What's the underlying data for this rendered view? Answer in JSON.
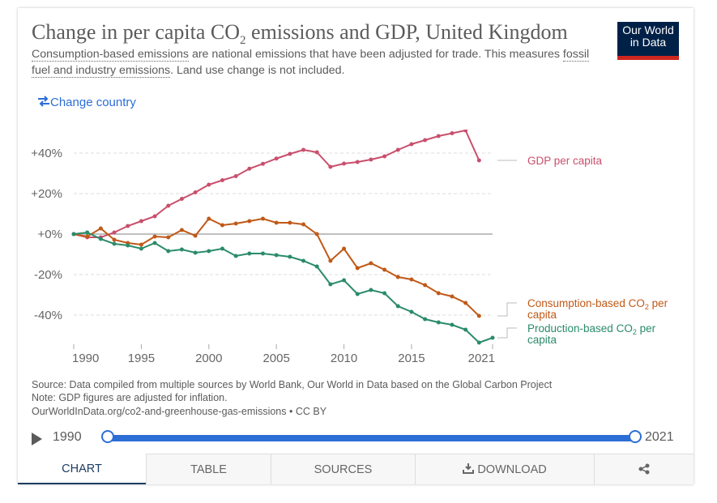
{
  "header": {
    "title_pre": "Change in per capita CO",
    "title_sub": "2",
    "title_post": " emissions and GDP, United Kingdom",
    "subtitle_link1": "Consumption-based emissions",
    "subtitle_mid": " are national emissions that have been adjusted for trade. This measures ",
    "subtitle_link2": "fossil fuel and industry emissions",
    "subtitle_end": ". Land use change is not included.",
    "logo_line1": "Our World",
    "logo_line2": "in Data"
  },
  "controls": {
    "change_country": "Change country",
    "change_icon": "swap-arrows-icon"
  },
  "chart_data": {
    "type": "line",
    "title": "Change in per capita CO2 emissions and GDP, United Kingdom",
    "xlabel": "",
    "ylabel": "",
    "xlim": [
      1990,
      2021
    ],
    "ylim": [
      -54,
      50
    ],
    "x_ticks": [
      1990,
      1995,
      2000,
      2005,
      2010,
      2015,
      2021
    ],
    "y_ticks": [
      {
        "value": 40,
        "label": "+40%"
      },
      {
        "value": 20,
        "label": "+20%"
      },
      {
        "value": 0,
        "label": "+0%"
      },
      {
        "value": -20,
        "label": "-20%"
      },
      {
        "value": -40,
        "label": "-40%"
      }
    ],
    "grid": true,
    "legend": "right (inline labels at line ends)",
    "series": [
      {
        "name": "GDP per capita",
        "color": "#c94f6d",
        "x": [
          1990,
          1991,
          1992,
          1993,
          1994,
          1995,
          1996,
          1997,
          1998,
          1999,
          2000,
          2001,
          2002,
          2003,
          2004,
          2005,
          2006,
          2007,
          2008,
          2009,
          2010,
          2011,
          2012,
          2013,
          2014,
          2015,
          2016,
          2017,
          2018,
          2019,
          2020
        ],
        "values": [
          0,
          -1.6,
          -1.6,
          0.8,
          4,
          6.4,
          8.8,
          14,
          17.4,
          20.6,
          24.4,
          26.6,
          28.6,
          32.3,
          34.7,
          37.3,
          39.6,
          41.6,
          40.4,
          33.2,
          34.8,
          35.6,
          36.8,
          38.4,
          41.6,
          44.4,
          46.4,
          48.4,
          49.8,
          51.2,
          36.4
        ]
      },
      {
        "name": "Consumption-based CO2 per capita",
        "color": "#c05917",
        "x": [
          1990,
          1991,
          1992,
          1993,
          1994,
          1995,
          1996,
          1997,
          1998,
          1999,
          2000,
          2001,
          2002,
          2003,
          2004,
          2005,
          2006,
          2007,
          2008,
          2009,
          2010,
          2011,
          2012,
          2013,
          2014,
          2015,
          2016,
          2017,
          2018,
          2019,
          2020
        ],
        "values": [
          0,
          -1.2,
          2.8,
          -2.8,
          -4.4,
          -5.2,
          -1.2,
          -1.6,
          2,
          -0.8,
          7.6,
          4.4,
          5.2,
          6.4,
          7.6,
          5.6,
          5.6,
          4.8,
          0,
          -13.2,
          -7.2,
          -16.8,
          -14.4,
          -17.6,
          -21.2,
          -22.4,
          -25.2,
          -29.2,
          -30.8,
          -34,
          -40.4
        ]
      },
      {
        "name": "Production-based CO2 per capita",
        "color": "#2a8b6a",
        "x": [
          1990,
          1991,
          1992,
          1993,
          1994,
          1995,
          1996,
          1997,
          1998,
          1999,
          2000,
          2001,
          2002,
          2003,
          2004,
          2005,
          2006,
          2007,
          2008,
          2009,
          2010,
          2011,
          2012,
          2013,
          2014,
          2015,
          2016,
          2017,
          2018,
          2019,
          2020,
          2021
        ],
        "values": [
          0,
          0.8,
          -2.4,
          -4.8,
          -5.6,
          -7.2,
          -4.4,
          -8.4,
          -7.6,
          -9.2,
          -8.4,
          -7.2,
          -10.8,
          -9.6,
          -9.6,
          -10.4,
          -11.2,
          -13.2,
          -16,
          -24.8,
          -22.8,
          -29.6,
          -27.6,
          -29.2,
          -35.6,
          -38.4,
          -42,
          -43.6,
          -44.8,
          -47.2,
          -53.6,
          -51.2
        ]
      }
    ],
    "series_labels": [
      {
        "line1": "GDP per capita",
        "line2": ""
      },
      {
        "line1_pre": "Consumption-based CO",
        "line1_sub": "2",
        "line1_post": " per",
        "line2": "capita"
      },
      {
        "line1_pre": "Production-based CO",
        "line1_sub": "2",
        "line1_post": " per",
        "line2": "capita"
      }
    ]
  },
  "footer": {
    "source": "Source: Data compiled from multiple sources by World Bank, Our World in Data based on the Global Carbon Project",
    "note": "Note: GDP figures are adjusted for inflation.",
    "url": "OurWorldInData.org/co2-and-greenhouse-gas-emissions • CC BY"
  },
  "timeline": {
    "start_label": "1990",
    "end_label": "2021",
    "range_start_year": 1990,
    "range_end_year": 2021
  },
  "tabs": [
    {
      "label": "CHART",
      "active": true
    },
    {
      "label": "TABLE",
      "active": false
    },
    {
      "label": "SOURCES",
      "active": false
    },
    {
      "label": "DOWNLOAD",
      "active": false,
      "icon": "download-icon"
    },
    {
      "label": "",
      "active": false,
      "icon": "share-icon"
    }
  ]
}
